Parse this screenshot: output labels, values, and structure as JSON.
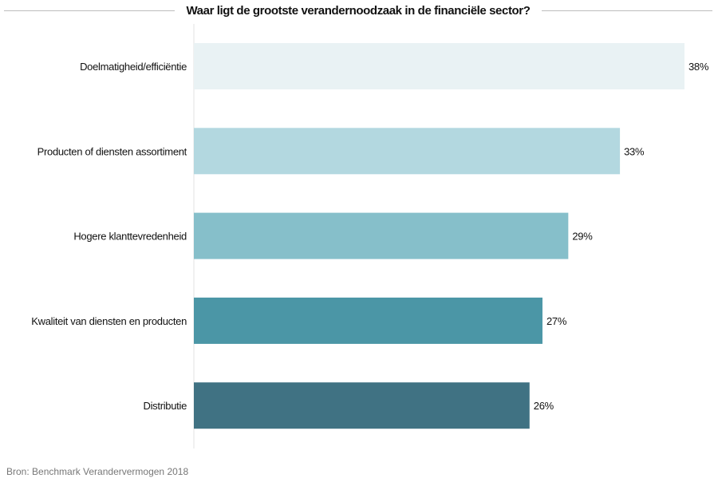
{
  "chart_data": {
    "type": "bar",
    "orientation": "horizontal",
    "title": "Waar ligt de grootste verandernoodzaak in de financiële sector?",
    "categories": [
      "Doelmatigheid/efficiëntie",
      "Producten of diensten assortiment",
      "Hogere klanttevredenheid",
      "Kwaliteit van diensten en producten",
      "Distributie"
    ],
    "values": [
      38,
      33,
      29,
      27,
      26
    ],
    "data_labels": [
      "38%",
      "33%",
      "29%",
      "27%",
      "26%"
    ],
    "unit": "%",
    "xlim": [
      0,
      38
    ],
    "grid": false,
    "colors": [
      "#e9f2f4",
      "#b3d8e0",
      "#86bfca",
      "#4b96a6",
      "#407283"
    ],
    "xlabel": "",
    "ylabel": ""
  },
  "source": "Bron: Benchmark Verandervermogen 2018"
}
